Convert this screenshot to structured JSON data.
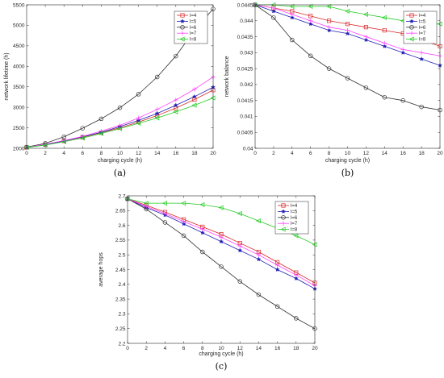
{
  "chart_data": [
    {
      "type": "line",
      "panel_label": "(a)",
      "xlabel": "charging cycle (h)",
      "ylabel": "network lifetime (h)",
      "xlim": [
        0,
        20
      ],
      "ylim": [
        2000,
        5500
      ],
      "xticks": [
        0,
        2,
        4,
        6,
        8,
        10,
        12,
        14,
        16,
        18,
        20
      ],
      "yticks": [
        2000,
        2500,
        3000,
        3500,
        4000,
        4500,
        5000,
        5500
      ],
      "ytick_labels": [
        "2000",
        "2500",
        "3000",
        "3500",
        "4000",
        "4500",
        "5000",
        "5500"
      ],
      "legend_position": "top-right",
      "x": [
        0,
        2,
        4,
        6,
        8,
        10,
        12,
        14,
        16,
        18,
        20
      ],
      "series": [
        {
          "name": "l=4",
          "color": "#d62728",
          "marker": "square",
          "values": [
            2020,
            2090,
            2180,
            2270,
            2380,
            2500,
            2640,
            2800,
            2980,
            3190,
            3420
          ]
        },
        {
          "name": "l=5",
          "color": "#1f1fb4",
          "marker": "star",
          "values": [
            2020,
            2090,
            2180,
            2280,
            2390,
            2530,
            2680,
            2850,
            3050,
            3260,
            3490
          ]
        },
        {
          "name": "l=6",
          "color": "#303030",
          "marker": "circle",
          "values": [
            2030,
            2120,
            2280,
            2490,
            2720,
            2990,
            3320,
            3740,
            4250,
            4880,
            5400
          ]
        },
        {
          "name": "l=7",
          "color": "#ff44ff",
          "marker": "plus",
          "values": [
            2020,
            2100,
            2190,
            2290,
            2420,
            2560,
            2740,
            2950,
            3180,
            3440,
            3740
          ]
        },
        {
          "name": "l=8",
          "color": "#22cc22",
          "marker": "triangle-left",
          "values": [
            2020,
            2080,
            2160,
            2250,
            2360,
            2480,
            2610,
            2740,
            2890,
            3050,
            3230
          ]
        }
      ]
    },
    {
      "type": "line",
      "panel_label": "(b)",
      "xlabel": "charging cycle (h)",
      "ylabel": "network balance",
      "xlim": [
        0,
        20
      ],
      "ylim": [
        0.04,
        0.0445
      ],
      "xticks": [
        0,
        2,
        4,
        6,
        8,
        10,
        12,
        14,
        16,
        18,
        20
      ],
      "yticks": [
        0.04,
        0.0405,
        0.041,
        0.0415,
        0.042,
        0.0425,
        0.043,
        0.0435,
        0.044,
        0.0445
      ],
      "ytick_labels": [
        "0.04",
        "0.0405",
        "0.041",
        "0.0415",
        "0.042",
        "0.0425",
        "0.043",
        "0.0435",
        "0.044",
        "0.0445"
      ],
      "legend_position": "top-right",
      "x": [
        0,
        2,
        4,
        6,
        8,
        10,
        12,
        14,
        16,
        18,
        20
      ],
      "series": [
        {
          "name": "l=4",
          "color": "#d62728",
          "marker": "square",
          "values": [
            0.0445,
            0.0444,
            0.0443,
            0.04415,
            0.044,
            0.0439,
            0.0438,
            0.0437,
            0.0436,
            0.0434,
            0.0432
          ]
        },
        {
          "name": "l=5",
          "color": "#1f1fb4",
          "marker": "star",
          "values": [
            0.0445,
            0.0443,
            0.0441,
            0.0439,
            0.0437,
            0.0436,
            0.0434,
            0.0432,
            0.043,
            0.0428,
            0.0426
          ]
        },
        {
          "name": "l=6",
          "color": "#303030",
          "marker": "circle",
          "values": [
            0.0445,
            0.0441,
            0.0434,
            0.0429,
            0.0425,
            0.0422,
            0.0419,
            0.0416,
            0.0415,
            0.0413,
            0.0412
          ]
        },
        {
          "name": "l=7",
          "color": "#ff44ff",
          "marker": "plus",
          "values": [
            0.0445,
            0.0444,
            0.0442,
            0.044,
            0.0438,
            0.0437,
            0.0435,
            0.0433,
            0.0431,
            0.043,
            0.0429
          ]
        },
        {
          "name": "l=8",
          "color": "#22cc22",
          "marker": "triangle-left",
          "values": [
            0.0445,
            0.0445,
            0.04445,
            0.04445,
            0.04445,
            0.0443,
            0.0442,
            0.0441,
            0.044,
            0.0439,
            0.0439
          ]
        }
      ]
    },
    {
      "type": "line",
      "panel_label": "(c)",
      "xlabel": "charging cycle (h)",
      "ylabel": "average hops",
      "xlim": [
        0,
        20
      ],
      "ylim": [
        2.2,
        2.7
      ],
      "xticks": [
        0,
        2,
        4,
        6,
        8,
        10,
        12,
        14,
        16,
        18,
        20
      ],
      "yticks": [
        2.2,
        2.25,
        2.3,
        2.35,
        2.4,
        2.45,
        2.5,
        2.55,
        2.6,
        2.65,
        2.7
      ],
      "ytick_labels": [
        "2.2",
        "2.25",
        "2.3",
        "2.35",
        "2.4",
        "2.45",
        "2.5",
        "2.55",
        "2.6",
        "2.65",
        "2.7"
      ],
      "legend_position": "top-right",
      "x": [
        0,
        2,
        4,
        6,
        8,
        10,
        12,
        14,
        16,
        18,
        20
      ],
      "series": [
        {
          "name": "l=4",
          "color": "#d62728",
          "marker": "square",
          "values": [
            2.69,
            2.668,
            2.645,
            2.62,
            2.595,
            2.57,
            2.54,
            2.51,
            2.475,
            2.44,
            2.405
          ]
        },
        {
          "name": "l=5",
          "color": "#1f1fb4",
          "marker": "star",
          "values": [
            2.69,
            2.66,
            2.635,
            2.605,
            2.575,
            2.545,
            2.515,
            2.485,
            2.45,
            2.42,
            2.385
          ]
        },
        {
          "name": "l=6",
          "color": "#303030",
          "marker": "circle",
          "values": [
            2.69,
            2.655,
            2.61,
            2.565,
            2.51,
            2.46,
            2.41,
            2.365,
            2.325,
            2.285,
            2.25
          ]
        },
        {
          "name": "l=7",
          "color": "#ff44ff",
          "marker": "plus",
          "values": [
            2.69,
            2.664,
            2.64,
            2.613,
            2.587,
            2.56,
            2.53,
            2.5,
            2.465,
            2.432,
            2.395
          ]
        },
        {
          "name": "l=8",
          "color": "#22cc22",
          "marker": "triangle-left",
          "values": [
            2.69,
            2.675,
            2.675,
            2.675,
            2.67,
            2.66,
            2.64,
            2.615,
            2.59,
            2.565,
            2.535
          ]
        }
      ]
    }
  ]
}
